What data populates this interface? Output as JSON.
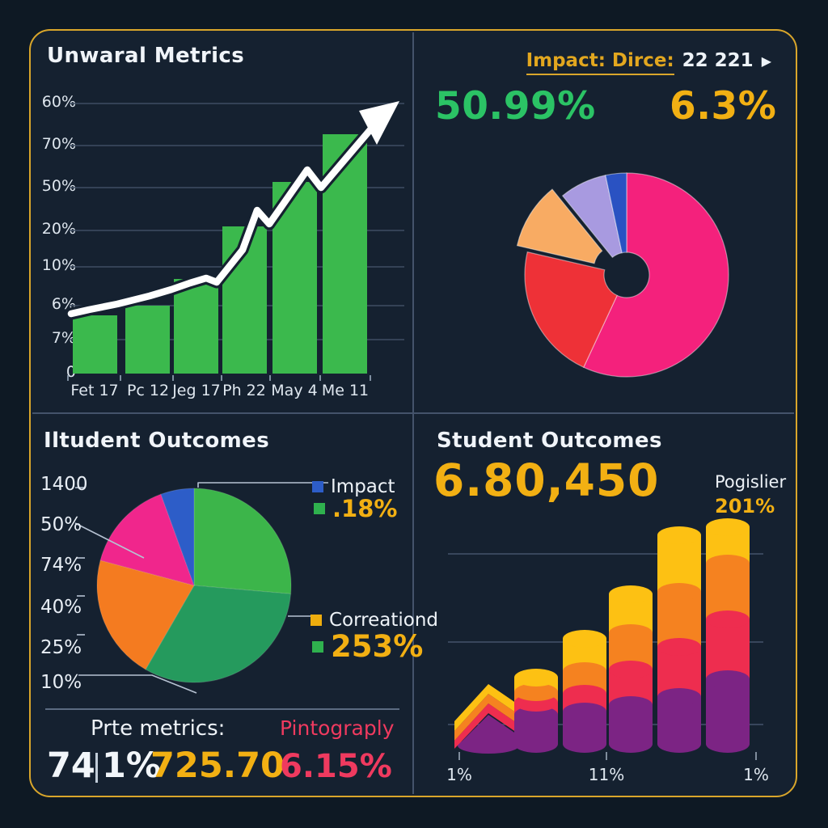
{
  "theme": {
    "background": "#0e1924",
    "panel_background": "#152130",
    "border_gold": "#d9a62b",
    "grid_color": "#3e4e63",
    "divider_color": "#44536b",
    "text_color": "#eef3f8",
    "accent_green": "#2bc365",
    "accent_yellow": "#f2b013",
    "accent_crimson": "#ef3a5f"
  },
  "chart_data": [
    {
      "type": "bar",
      "subtype": "bars-with-trend-line",
      "panel": "top_left",
      "categories": [
        "Fet 17",
        "Pc 12",
        "Jeg 17",
        "Ph 22",
        "May 4",
        "Me 11"
      ],
      "values": [
        0.215,
        0.25,
        0.35,
        0.545,
        0.71,
        0.885
      ],
      "y_ticks": [
        "60%",
        "70%",
        "50%",
        "20%",
        "10%",
        "6%",
        "7%",
        "0"
      ],
      "bar_color": "#3bb94d",
      "line_color": "#ffffff",
      "line_points": [
        [
          50,
          273
        ],
        [
          72,
          268
        ],
        [
          107,
          261
        ],
        [
          147,
          251
        ],
        [
          174,
          243
        ],
        [
          197,
          235
        ],
        [
          217,
          229
        ],
        [
          230,
          234
        ],
        [
          262,
          194
        ],
        [
          280,
          145
        ],
        [
          295,
          162
        ],
        [
          342,
          95
        ],
        [
          359,
          117
        ],
        [
          428,
          36
        ]
      ],
      "arrow_points": [
        [
          456,
          10
        ],
        [
          406,
          22
        ],
        [
          428,
          64
        ]
      ],
      "grid": true
    },
    {
      "type": "pie",
      "subtype": "donut",
      "panel": "top_right",
      "segments": [
        {
          "color": "#f4217c",
          "degrees": 205
        },
        {
          "color": "#ee3137",
          "degrees": 78
        },
        {
          "color": "#f8ab63",
          "degrees": 38,
          "exploded": true
        },
        {
          "color": "#a89ae0",
          "degrees": 27
        },
        {
          "color": "#2a52c2",
          "degrees": 12
        }
      ]
    },
    {
      "type": "pie",
      "subtype": "pie-with-callouts",
      "panel": "bottom_left",
      "axis_labels": [
        "1400",
        "50%",
        "74%",
        "40%",
        "25%",
        "10%"
      ],
      "segments": [
        {
          "color": "#3cb54a",
          "degrees": 95
        },
        {
          "color": "#259a5d",
          "degrees": 115
        },
        {
          "color": "#f47b20",
          "degrees": 75
        },
        {
          "color": "#f0268c",
          "degrees": 55
        },
        {
          "color": "#2d5dc8",
          "degrees": 20
        }
      ]
    },
    {
      "type": "bar",
      "subtype": "stacked-cylinder",
      "panel": "bottom_right",
      "stack_colors": [
        "#7c2484",
        "#ee2d4f",
        "#f58220",
        "#fdc113"
      ],
      "bars": [
        {
          "shape": "arrow",
          "segments": [
            38,
            12,
            12,
            12
          ]
        },
        {
          "segments": [
            36,
            15,
            13,
            18
          ]
        },
        {
          "segments": [
            40,
            22,
            28,
            40
          ]
        },
        {
          "segments": [
            48,
            44,
            45,
            48
          ]
        },
        {
          "segments": [
            58,
            62,
            68,
            70
          ]
        },
        {
          "segments": [
            80,
            74,
            69,
            45
          ]
        }
      ],
      "x_labels": [
        "1%",
        "11%",
        "1%"
      ],
      "grid": true
    }
  ],
  "quadrants": {
    "top_left": {
      "title": "Unwaral Metrics"
    },
    "top_right": {
      "header": {
        "label": "Impact: Dirce:",
        "value": "22 221",
        "arrow_icon": "▶"
      },
      "stats": [
        {
          "value": "50.99%",
          "color": "#2bc365"
        },
        {
          "value": "6.3%",
          "color": "#f2b013"
        }
      ]
    },
    "bottom_left": {
      "title": "Iltudent Outcomes",
      "legend": [
        {
          "swatch": "#2d5dc8",
          "label": "Impact",
          "color": "#eef3f8"
        },
        {
          "swatch": "#2fb14e",
          "label": ".18%",
          "color": "#f2b013"
        },
        {
          "swatch": "#eead0e",
          "label": "Correationd",
          "color": "#eef3f8"
        },
        {
          "swatch": "#2fb14e",
          "label": "253%",
          "color": "#f2b013"
        }
      ],
      "footer": {
        "left_label": "Prte metrics:",
        "right_label": "Pintograply",
        "metric_main": "74",
        "metric_sub": "1%",
        "metric_yellow": "725.70",
        "metric_crimson": "6.15%"
      }
    },
    "bottom_right": {
      "title": "Student Outcomes",
      "big_number": "6.80,450",
      "side_stat": {
        "label": "Pogislier",
        "value": "201%"
      }
    }
  }
}
